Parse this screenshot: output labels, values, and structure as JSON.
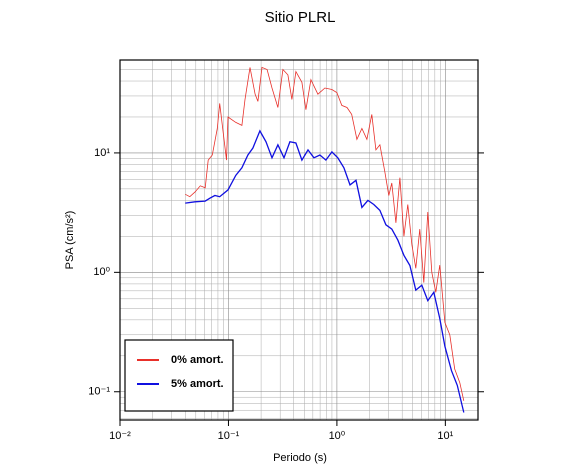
{
  "chart_data": {
    "type": "line",
    "title": "Sitio PLRL",
    "x_label": "Periodo (s)",
    "y_label": "PSA (cm/s²)",
    "log_x": true,
    "log_y": true,
    "grid": true,
    "minor_grid": true,
    "legend": "lower left",
    "xlim": [
      0.01,
      20
    ],
    "ylim": [
      0.058,
      60
    ],
    "xticks": [
      {
        "value": 0.01,
        "label": "10⁻²"
      },
      {
        "value": 0.1,
        "label": "10⁻¹"
      },
      {
        "value": 1,
        "label": "10⁰"
      },
      {
        "value": 10,
        "label": "10¹"
      }
    ],
    "yticks": [
      {
        "value": 0.1,
        "label": "10⁻¹"
      },
      {
        "value": 1,
        "label": "10⁰"
      },
      {
        "value": 10,
        "label": "10¹"
      }
    ],
    "series": [
      {
        "name": "0% amort.",
        "color": "#e8302a",
        "x": [
          0.04,
          0.044,
          0.049,
          0.055,
          0.061,
          0.065,
          0.071,
          0.079,
          0.083,
          0.091,
          0.096,
          0.099,
          0.117,
          0.133,
          0.142,
          0.158,
          0.176,
          0.187,
          0.204,
          0.227,
          0.252,
          0.286,
          0.318,
          0.353,
          0.385,
          0.419,
          0.476,
          0.518,
          0.576,
          0.668,
          0.775,
          0.9,
          1.0,
          1.11,
          1.24,
          1.37,
          1.53,
          1.7,
          1.89,
          2.1,
          2.29,
          2.49,
          2.77,
          3.01,
          3.21,
          3.5,
          3.81,
          4.15,
          4.51,
          4.91,
          5.34,
          5.81,
          6.33,
          6.89,
          7.5,
          8.17,
          8.89,
          9.9,
          11.0,
          12.2,
          13.6,
          14.8
        ],
        "values": [
          4.5,
          4.3,
          4.7,
          5.3,
          5.1,
          8.7,
          9.6,
          16,
          26,
          13,
          8.7,
          20,
          18,
          17,
          28,
          52,
          31,
          27,
          52,
          50,
          35,
          24,
          50,
          45,
          28,
          48,
          39,
          23,
          41,
          31,
          35,
          34,
          32,
          25,
          24,
          21,
          13,
          16,
          13,
          21,
          10.6,
          11.7,
          6.9,
          4.4,
          5.6,
          2.6,
          6.2,
          2.0,
          3.7,
          1.7,
          1.08,
          2.3,
          0.82,
          3.2,
          1.0,
          0.68,
          1.15,
          0.38,
          0.3,
          0.155,
          0.119,
          0.084
        ]
      },
      {
        "name": "5% amort.",
        "color": "#1010e0",
        "x": [
          0.04,
          0.049,
          0.061,
          0.068,
          0.075,
          0.083,
          0.099,
          0.117,
          0.133,
          0.151,
          0.168,
          0.195,
          0.222,
          0.252,
          0.286,
          0.325,
          0.369,
          0.419,
          0.476,
          0.541,
          0.614,
          0.697,
          0.792,
          0.9,
          1.02,
          1.16,
          1.32,
          1.5,
          1.7,
          1.93,
          2.19,
          2.49,
          2.83,
          3.21,
          3.65,
          4.15,
          4.71,
          5.34,
          6.07,
          6.89,
          7.83,
          8.89,
          9.9,
          11.4,
          12.9,
          14.8
        ],
        "values": [
          3.8,
          3.9,
          3.95,
          4.2,
          4.4,
          4.3,
          4.9,
          6.5,
          7.5,
          9.6,
          11,
          15.3,
          12.4,
          9.1,
          11.7,
          9.1,
          12.4,
          12.1,
          8.7,
          10.6,
          9.1,
          9.6,
          8.7,
          10.2,
          9.1,
          7.5,
          5.4,
          5.9,
          3.5,
          4.0,
          3.7,
          3.3,
          2.5,
          2.3,
          1.86,
          1.39,
          1.14,
          0.71,
          0.78,
          0.58,
          0.68,
          0.41,
          0.24,
          0.15,
          0.113,
          0.067
        ]
      }
    ]
  }
}
